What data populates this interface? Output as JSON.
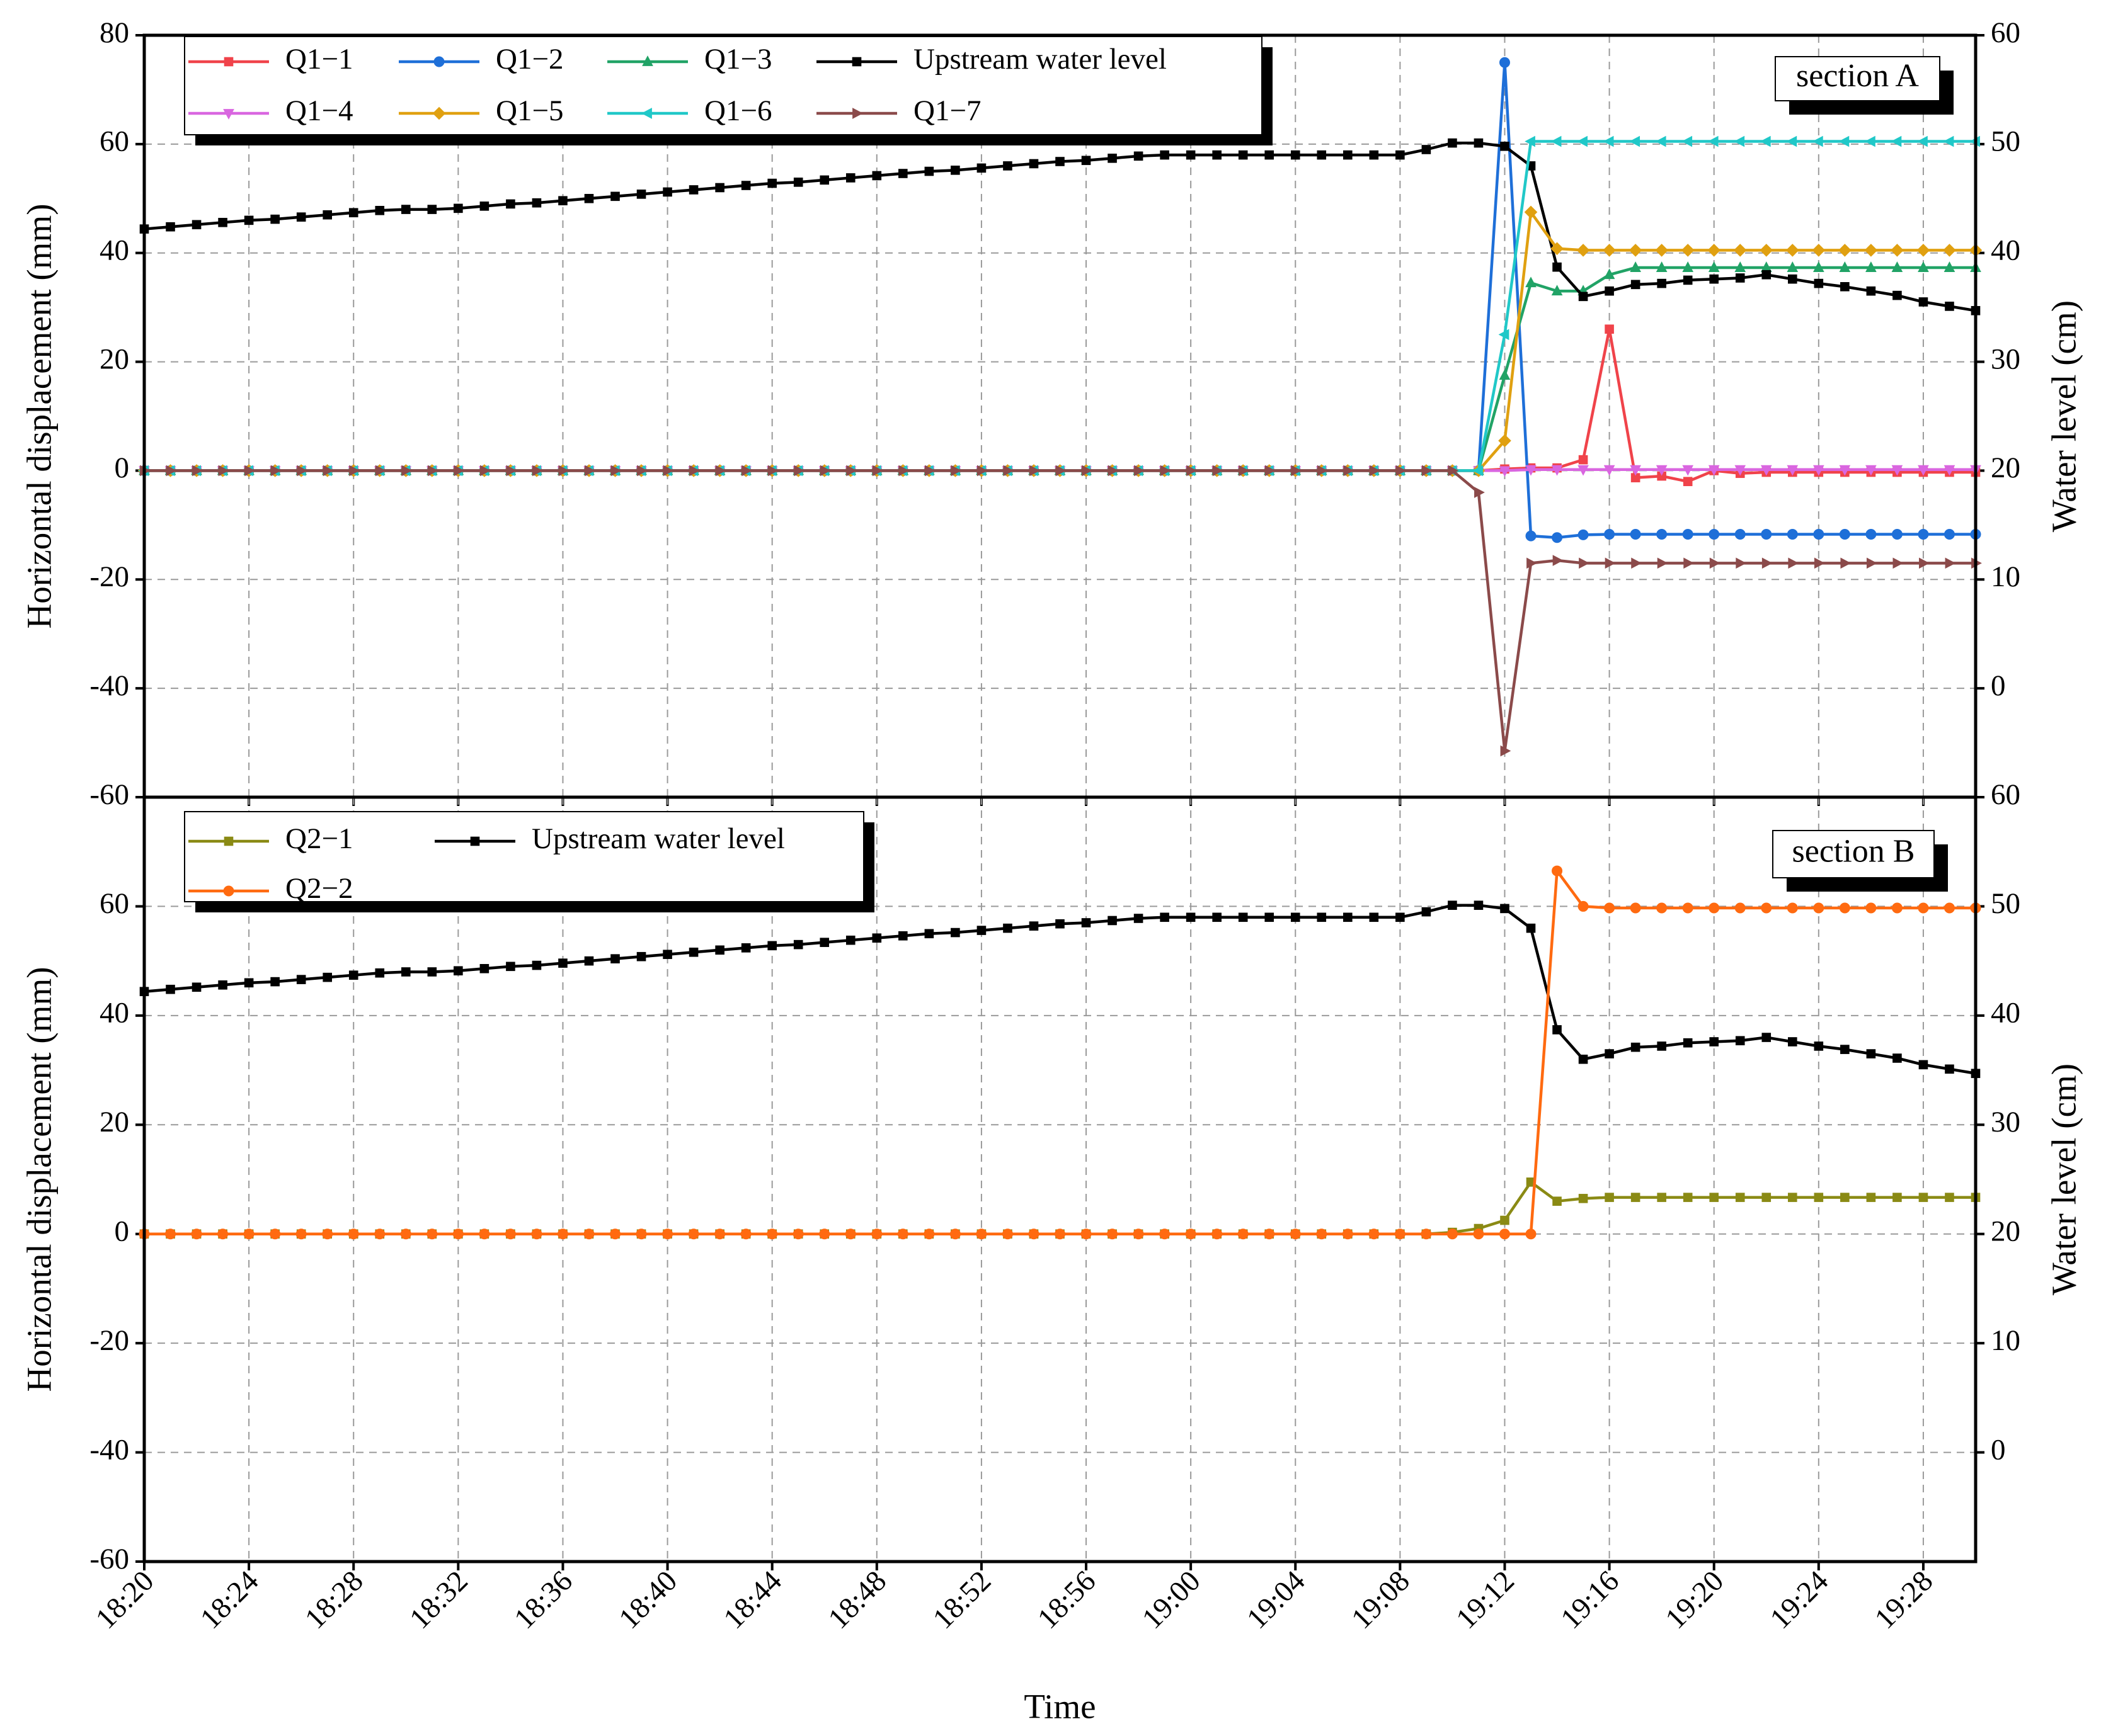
{
  "chart_data": [
    {
      "type": "line",
      "annotation": "section A",
      "ylabel": "Horizontal displacement (mm)",
      "y2label": "Water level (cm)",
      "ylim": [
        -60,
        80
      ],
      "yticks": [
        -60,
        -40,
        -20,
        0,
        20,
        40,
        60,
        80
      ],
      "y2lim": [
        -10,
        60
      ],
      "y2ticks": [
        0,
        10,
        20,
        30,
        40,
        50,
        60
      ],
      "grid": true,
      "series": [
        {
          "name": "Q1−1",
          "color": "#f0434a",
          "marker": "square",
          "values": [
            0,
            0,
            0,
            0,
            0,
            0,
            0,
            0,
            0,
            0,
            0,
            0,
            0,
            0,
            0,
            0,
            0,
            0,
            0,
            0,
            0,
            0,
            0,
            0,
            0,
            0,
            0,
            0,
            0,
            0,
            0,
            0,
            0,
            0,
            0,
            0,
            0,
            0,
            0,
            0,
            0,
            0,
            0,
            0,
            0,
            0,
            0,
            0,
            0,
            0,
            0,
            0,
            0.3,
            0.5,
            0.5,
            2,
            26,
            -1.3,
            -1,
            -2,
            0,
            -0.5,
            -0.3,
            -0.3,
            -0.3,
            -0.3,
            -0.3,
            -0.3,
            -0.3,
            -0.3,
            -0.3
          ]
        },
        {
          "name": "Q1−2",
          "color": "#1e6fd8",
          "marker": "circle",
          "values": [
            0,
            0,
            0,
            0,
            0,
            0,
            0,
            0,
            0,
            0,
            0,
            0,
            0,
            0,
            0,
            0,
            0,
            0,
            0,
            0,
            0,
            0,
            0,
            0,
            0,
            0,
            0,
            0,
            0,
            0,
            0,
            0,
            0,
            0,
            0,
            0,
            0,
            0,
            0,
            0,
            0,
            0,
            0,
            0,
            0,
            0,
            0,
            0,
            0,
            0,
            0,
            0,
            75,
            -12,
            -12.3,
            -11.8,
            -11.7,
            -11.7,
            -11.7,
            -11.7,
            -11.7,
            -11.7,
            -11.7,
            -11.7,
            -11.7,
            -11.7,
            -11.7,
            -11.7,
            -11.7,
            -11.7,
            -11.7
          ]
        },
        {
          "name": "Q1−3",
          "color": "#21a366",
          "marker": "up",
          "values": [
            0,
            0,
            0,
            0,
            0,
            0,
            0,
            0,
            0,
            0,
            0,
            0,
            0,
            0,
            0,
            0,
            0,
            0,
            0,
            0,
            0,
            0,
            0,
            0,
            0,
            0,
            0,
            0,
            0,
            0,
            0,
            0,
            0,
            0,
            0,
            0,
            0,
            0,
            0,
            0,
            0,
            0,
            0,
            0,
            0,
            0,
            0,
            0,
            0,
            0,
            0,
            0,
            17.5,
            34.5,
            33,
            33,
            36,
            37.3,
            37.3,
            37.3,
            37.3,
            37.3,
            37.3,
            37.3,
            37.3,
            37.3,
            37.3,
            37.3,
            37.3,
            37.3,
            37.3
          ]
        },
        {
          "name": "Upstream water level",
          "color": "#000000",
          "marker": "square",
          "axis": "y2",
          "values": [
            42.2,
            42.4,
            42.6,
            42.8,
            43.0,
            43.1,
            43.3,
            43.5,
            43.7,
            43.9,
            44.0,
            44.0,
            44.1,
            44.3,
            44.5,
            44.6,
            44.8,
            45.0,
            45.2,
            45.4,
            45.6,
            45.8,
            46.0,
            46.2,
            46.4,
            46.5,
            46.7,
            46.9,
            47.1,
            47.3,
            47.5,
            47.6,
            47.8,
            48.0,
            48.2,
            48.4,
            48.5,
            48.7,
            48.9,
            49.0,
            49.0,
            49.0,
            49.0,
            49.0,
            49.0,
            49.0,
            49.0,
            49.0,
            49.0,
            49.5,
            50.1,
            50.1,
            49.8,
            48.0,
            38.7,
            36.0,
            36.5,
            37.1,
            37.2,
            37.5,
            37.6,
            37.7,
            38.0,
            37.6,
            37.2,
            36.9,
            36.5,
            36.1,
            35.5,
            35.1,
            34.7
          ]
        },
        {
          "name": "Q1−4",
          "color": "#d966e0",
          "marker": "down",
          "values": [
            0,
            0,
            0,
            0,
            0,
            0,
            0,
            0,
            0,
            0,
            0,
            0,
            0,
            0,
            0,
            0,
            0,
            0,
            0,
            0,
            0,
            0,
            0,
            0,
            0,
            0,
            0,
            0,
            0,
            0,
            0,
            0,
            0,
            0,
            0,
            0,
            0,
            0,
            0,
            0,
            0,
            0,
            0,
            0,
            0,
            0,
            0,
            0,
            0,
            0,
            0,
            0,
            0,
            0.2,
            0.2,
            0.2,
            0.2,
            0.2,
            0.2,
            0.2,
            0.2,
            0.2,
            0.2,
            0.2,
            0.2,
            0.2,
            0.2,
            0.2,
            0.2,
            0.2,
            0.2
          ]
        },
        {
          "name": "Q1−5",
          "color": "#e0a010",
          "marker": "diamond",
          "values": [
            0,
            0,
            0,
            0,
            0,
            0,
            0,
            0,
            0,
            0,
            0,
            0,
            0,
            0,
            0,
            0,
            0,
            0,
            0,
            0,
            0,
            0,
            0,
            0,
            0,
            0,
            0,
            0,
            0,
            0,
            0,
            0,
            0,
            0,
            0,
            0,
            0,
            0,
            0,
            0,
            0,
            0,
            0,
            0,
            0,
            0,
            0,
            0,
            0,
            0,
            0,
            0,
            5.5,
            47.5,
            40.8,
            40.5,
            40.5,
            40.5,
            40.5,
            40.5,
            40.5,
            40.5,
            40.5,
            40.5,
            40.5,
            40.5,
            40.5,
            40.5,
            40.5,
            40.5,
            40.5
          ]
        },
        {
          "name": "Q1−6",
          "color": "#20c8c8",
          "marker": "left",
          "values": [
            0,
            0,
            0,
            0,
            0,
            0,
            0,
            0,
            0,
            0,
            0,
            0,
            0,
            0,
            0,
            0,
            0,
            0,
            0,
            0,
            0,
            0,
            0,
            0,
            0,
            0,
            0,
            0,
            0,
            0,
            0,
            0,
            0,
            0,
            0,
            0,
            0,
            0,
            0,
            0,
            0,
            0,
            0,
            0,
            0,
            0,
            0,
            0,
            0,
            0,
            0,
            0,
            25,
            60.5,
            60.5,
            60.5,
            60.5,
            60.5,
            60.5,
            60.5,
            60.5,
            60.5,
            60.5,
            60.5,
            60.5,
            60.5,
            60.5,
            60.5,
            60.5,
            60.5,
            60.5
          ]
        },
        {
          "name": "Q1−7",
          "color": "#8b4a4a",
          "marker": "right",
          "values": [
            0,
            0,
            0,
            0,
            0,
            0,
            0,
            0,
            0,
            0,
            0,
            0,
            0,
            0,
            0,
            0,
            0,
            0,
            0,
            0,
            0,
            0,
            0,
            0,
            0,
            0,
            0,
            0,
            0,
            0,
            0,
            0,
            0,
            0,
            0,
            0,
            0,
            0,
            0,
            0,
            0,
            0,
            0,
            0,
            0,
            0,
            0,
            0,
            0,
            0,
            0,
            -4,
            -51.5,
            -17,
            -16.5,
            -17,
            -17,
            -17,
            -17,
            -17,
            -17,
            -17,
            -17,
            -17,
            -17,
            -17,
            -17,
            -17,
            -17,
            -17,
            -17
          ]
        }
      ]
    },
    {
      "type": "line",
      "annotation": "section B",
      "ylabel": "Horizontal displacement (mm)",
      "y2label": "Water level (cm)",
      "xlabel": "Time",
      "categories": [
        "18:20",
        null,
        null,
        null,
        "18:24",
        null,
        null,
        null,
        "18:28",
        null,
        null,
        null,
        "18:32",
        null,
        null,
        null,
        "18:36",
        null,
        null,
        null,
        "18:40",
        null,
        null,
        null,
        "18:44",
        null,
        null,
        null,
        "18:48",
        null,
        null,
        null,
        "18:52",
        null,
        null,
        null,
        "18:56",
        null,
        null,
        null,
        "19:00",
        null,
        null,
        null,
        "19:04",
        null,
        null,
        null,
        "19:08",
        null,
        null,
        null,
        "19:12",
        null,
        null,
        null,
        "19:16",
        null,
        null,
        null,
        "19:20",
        null,
        null,
        null,
        "19:24",
        null,
        null,
        null,
        "19:28",
        null,
        null
      ],
      "ylim": [
        -60,
        80
      ],
      "yticks": [
        -60,
        -40,
        -20,
        0,
        20,
        40,
        60
      ],
      "y2lim": [
        -10,
        60
      ],
      "y2ticks": [
        0,
        10,
        20,
        30,
        40,
        50,
        60
      ],
      "grid": true,
      "series": [
        {
          "name": "Q2−1",
          "color": "#8a8a14",
          "marker": "square",
          "values": [
            0,
            0,
            0,
            0,
            0,
            0,
            0,
            0,
            0,
            0,
            0,
            0,
            0,
            0,
            0,
            0,
            0,
            0,
            0,
            0,
            0,
            0,
            0,
            0,
            0,
            0,
            0,
            0,
            0,
            0,
            0,
            0,
            0,
            0,
            0,
            0,
            0,
            0,
            0,
            0,
            0,
            0,
            0,
            0,
            0,
            0,
            0,
            0,
            0,
            0,
            0.3,
            1,
            2.5,
            9.5,
            6,
            6.5,
            6.7,
            6.7,
            6.7,
            6.7,
            6.7,
            6.7,
            6.7,
            6.7,
            6.7,
            6.7,
            6.7,
            6.7,
            6.7,
            6.7,
            6.7
          ]
        },
        {
          "name": "Upstream water level",
          "color": "#000000",
          "marker": "square",
          "axis": "y2",
          "values": [
            42.2,
            42.4,
            42.6,
            42.8,
            43.0,
            43.1,
            43.3,
            43.5,
            43.7,
            43.9,
            44.0,
            44.0,
            44.1,
            44.3,
            44.5,
            44.6,
            44.8,
            45.0,
            45.2,
            45.4,
            45.6,
            45.8,
            46.0,
            46.2,
            46.4,
            46.5,
            46.7,
            46.9,
            47.1,
            47.3,
            47.5,
            47.6,
            47.8,
            48.0,
            48.2,
            48.4,
            48.5,
            48.7,
            48.9,
            49.0,
            49.0,
            49.0,
            49.0,
            49.0,
            49.0,
            49.0,
            49.0,
            49.0,
            49.0,
            49.5,
            50.1,
            50.1,
            49.8,
            48.0,
            38.7,
            36.0,
            36.5,
            37.1,
            37.2,
            37.5,
            37.6,
            37.7,
            38.0,
            37.6,
            37.2,
            36.9,
            36.5,
            36.1,
            35.5,
            35.1,
            34.7
          ]
        },
        {
          "name": "Q2−2",
          "color": "#ff6a10",
          "marker": "circle",
          "values": [
            0,
            0,
            0,
            0,
            0,
            0,
            0,
            0,
            0,
            0,
            0,
            0,
            0,
            0,
            0,
            0,
            0,
            0,
            0,
            0,
            0,
            0,
            0,
            0,
            0,
            0,
            0,
            0,
            0,
            0,
            0,
            0,
            0,
            0,
            0,
            0,
            0,
            0,
            0,
            0,
            0,
            0,
            0,
            0,
            0,
            0,
            0,
            0,
            0,
            0,
            0,
            0,
            0,
            0,
            66.5,
            60,
            59.7,
            59.7,
            59.7,
            59.7,
            59.7,
            59.7,
            59.7,
            59.7,
            59.7,
            59.7,
            59.7,
            59.7,
            59.7,
            59.7,
            59.7
          ]
        }
      ]
    }
  ]
}
